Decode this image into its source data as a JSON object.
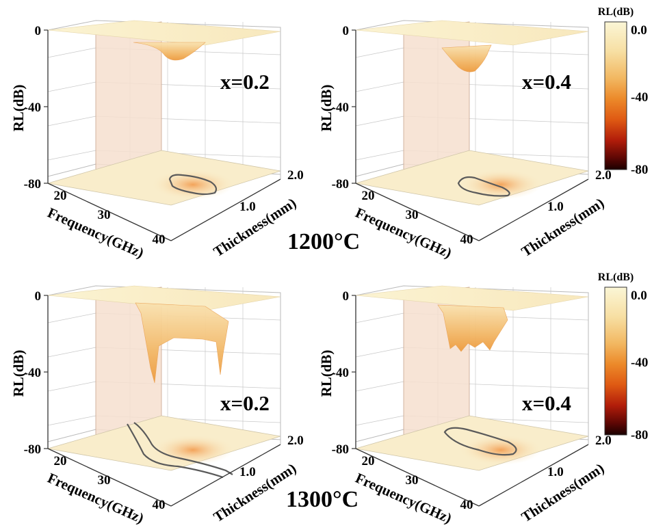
{
  "colors": {
    "scale": [
      "#fbf6d6",
      "#f7dfa3",
      "#f2b862",
      "#ec8a2a",
      "#df5a13",
      "#b21d0a",
      "#5e0704",
      "#1a0000"
    ],
    "wall_fill": "#f6dfcf",
    "contour": "#5a5a5a",
    "grid": "#c8c8c8"
  },
  "colorbar_labels": {
    "title": "RL(dB)",
    "ticks": [
      "0.0",
      "-40",
      "-80"
    ]
  },
  "temperature_labels": {
    "t1200": "1200°C",
    "t1300": "1300°C"
  },
  "chart_data": [
    {
      "type": "surface3d",
      "annotation": "x=0.2",
      "temperature": "1200°C",
      "zlabel": "RL(dB)",
      "xlabel": "Frequency(GHz)",
      "ylabel": "Thickness(mm)",
      "zlim": [
        -80,
        0
      ],
      "xlim": [
        18,
        40
      ],
      "ylim": [
        0,
        2.0
      ],
      "z_ticks": [
        "0",
        "-40",
        "-80"
      ],
      "x_ticks": [
        "20",
        "30",
        "40"
      ],
      "y_ticks": [
        "1.0",
        "2.0"
      ],
      "min_RL": -13,
      "grid": true
    },
    {
      "type": "surface3d",
      "annotation": "x=0.4",
      "temperature": "1200°C",
      "zlabel": "RL(dB)",
      "xlabel": "Frequency(GHz)",
      "ylabel": "Thickness(mm)",
      "zlim": [
        -80,
        0
      ],
      "xlim": [
        18,
        40
      ],
      "ylim": [
        0,
        2.0
      ],
      "z_ticks": [
        "0",
        "-40",
        "-80"
      ],
      "x_ticks": [
        "20",
        "30",
        "40"
      ],
      "y_ticks": [
        "1.0",
        "2.0"
      ],
      "min_RL": -20,
      "grid": true
    },
    {
      "type": "surface3d",
      "annotation": "x=0.2",
      "temperature": "1300°C",
      "zlabel": "RL(dB)",
      "xlabel": "Frequency(GHz)",
      "ylabel": "Thickness(mm)",
      "zlim": [
        -80,
        0
      ],
      "xlim": [
        18,
        40
      ],
      "ylim": [
        0,
        2.0
      ],
      "z_ticks": [
        "0",
        "-40",
        "-80"
      ],
      "x_ticks": [
        "20",
        "30",
        "40"
      ],
      "y_ticks": [
        "1.0",
        "2.0"
      ],
      "min_RL": -42,
      "grid": true
    },
    {
      "type": "surface3d",
      "annotation": "x=0.4",
      "temperature": "1300°C",
      "zlabel": "RL(dB)",
      "xlabel": "Frequency(GHz)",
      "ylabel": "Thickness(mm)",
      "zlim": [
        -80,
        0
      ],
      "xlim": [
        18,
        40
      ],
      "ylim": [
        0,
        2.0
      ],
      "z_ticks": [
        "0",
        "-40",
        "-80"
      ],
      "x_ticks": [
        "20",
        "30",
        "40"
      ],
      "y_ticks": [
        "1.0",
        "2.0"
      ],
      "min_RL": -30,
      "grid": true
    }
  ]
}
